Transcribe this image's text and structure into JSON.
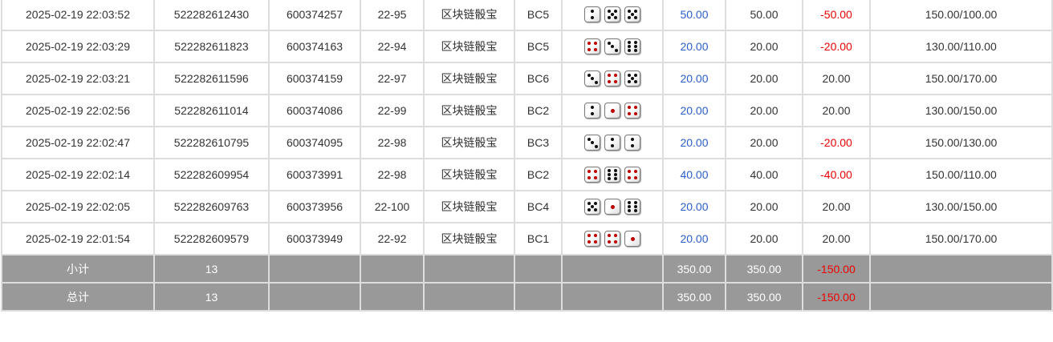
{
  "rows": [
    {
      "time": "2025-02-19 22:03:52",
      "order": "522282612430",
      "issue": "600374257",
      "table": "22-95",
      "game": "区块链骰宝",
      "bet": "BC5",
      "dice": [
        2,
        5,
        5
      ],
      "amount": "50.00",
      "valid": "50.00",
      "win": "-50.00",
      "balance": "150.00/100.00"
    },
    {
      "time": "2025-02-19 22:03:29",
      "order": "522282611823",
      "issue": "600374163",
      "table": "22-94",
      "game": "区块链骰宝",
      "bet": "BC5",
      "dice": [
        4,
        3,
        6
      ],
      "amount": "20.00",
      "valid": "20.00",
      "win": "-20.00",
      "balance": "130.00/110.00"
    },
    {
      "time": "2025-02-19 22:03:21",
      "order": "522282611596",
      "issue": "600374159",
      "table": "22-97",
      "game": "区块链骰宝",
      "bet": "BC6",
      "dice": [
        3,
        4,
        5
      ],
      "amount": "20.00",
      "valid": "20.00",
      "win": "20.00",
      "balance": "150.00/170.00"
    },
    {
      "time": "2025-02-19 22:02:56",
      "order": "522282611014",
      "issue": "600374086",
      "table": "22-99",
      "game": "区块链骰宝",
      "bet": "BC2",
      "dice": [
        2,
        1,
        4
      ],
      "amount": "20.00",
      "valid": "20.00",
      "win": "20.00",
      "balance": "130.00/150.00"
    },
    {
      "time": "2025-02-19 22:02:47",
      "order": "522282610795",
      "issue": "600374095",
      "table": "22-98",
      "game": "区块链骰宝",
      "bet": "BC3",
      "dice": [
        3,
        2,
        2
      ],
      "amount": "20.00",
      "valid": "20.00",
      "win": "-20.00",
      "balance": "150.00/130.00"
    },
    {
      "time": "2025-02-19 22:02:14",
      "order": "522282609954",
      "issue": "600373991",
      "table": "22-98",
      "game": "区块链骰宝",
      "bet": "BC2",
      "dice": [
        4,
        6,
        4
      ],
      "amount": "40.00",
      "valid": "40.00",
      "win": "-40.00",
      "balance": "150.00/110.00"
    },
    {
      "time": "2025-02-19 22:02:05",
      "order": "522282609763",
      "issue": "600373956",
      "table": "22-100",
      "game": "区块链骰宝",
      "bet": "BC4",
      "dice": [
        5,
        1,
        6
      ],
      "amount": "20.00",
      "valid": "20.00",
      "win": "20.00",
      "balance": "130.00/150.00"
    },
    {
      "time": "2025-02-19 22:01:54",
      "order": "522282609579",
      "issue": "600373949",
      "table": "22-92",
      "game": "区块链骰宝",
      "bet": "BC1",
      "dice": [
        4,
        4,
        1
      ],
      "amount": "20.00",
      "valid": "20.00",
      "win": "20.00",
      "balance": "150.00/170.00"
    }
  ],
  "summary": [
    {
      "label": "小计",
      "count": "13",
      "amount": "350.00",
      "valid": "350.00",
      "win": "-150.00"
    },
    {
      "label": "总计",
      "count": "13",
      "amount": "350.00",
      "valid": "350.00",
      "win": "-150.00"
    }
  ],
  "colors": {
    "amount": "#2a5fce",
    "negative": "#e00",
    "summary_bg": "#999"
  }
}
